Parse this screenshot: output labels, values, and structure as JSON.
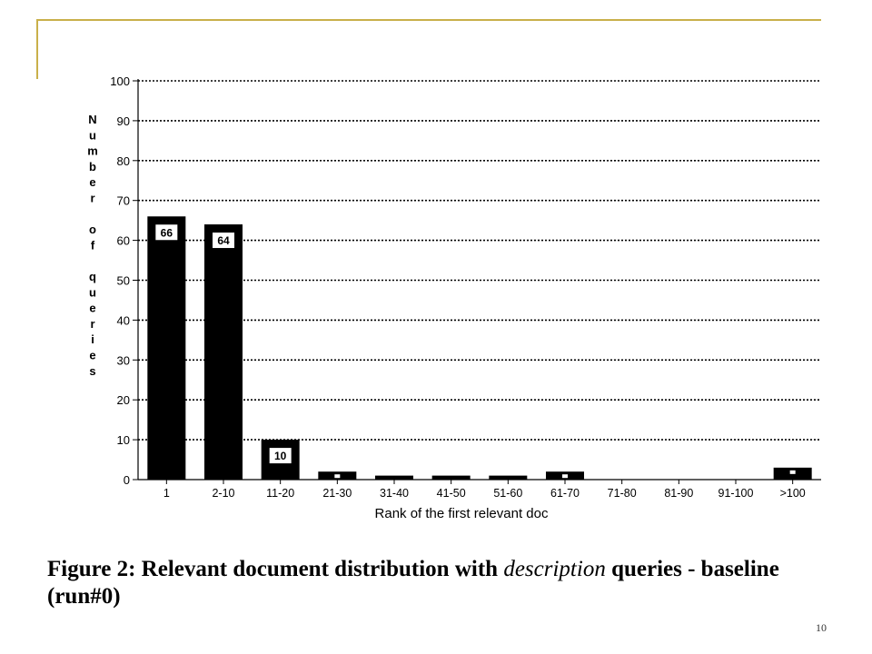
{
  "chart_data": {
    "type": "bar",
    "categories": [
      "1",
      "2-10",
      "11-20",
      "21-30",
      "31-40",
      "41-50",
      "51-60",
      "61-70",
      "71-80",
      "81-90",
      "91-100",
      ">100"
    ],
    "values": [
      66,
      64,
      10,
      2,
      1,
      1,
      1,
      2,
      0,
      0,
      0,
      3
    ],
    "data_labels": [
      "66",
      "64",
      "10",
      "2",
      "",
      "",
      "",
      "2",
      "",
      "",
      "",
      "3"
    ],
    "xlabel": "Rank of the first relevant doc",
    "ylabel": "Number of queries",
    "yticks": [
      "0",
      "10",
      "20",
      "30",
      "40",
      "50",
      "60",
      "70",
      "80",
      "90",
      "100"
    ],
    "ylim": [
      0,
      100
    ],
    "grid": true,
    "bar_color": "#000000"
  },
  "caption": {
    "part1": "Figure 2:  Relevant document distribution with ",
    "italic": "description",
    "part2": " queries - baseline (run#0)"
  },
  "slide_number": "10",
  "colors": {
    "frame": "#c9b04a"
  }
}
